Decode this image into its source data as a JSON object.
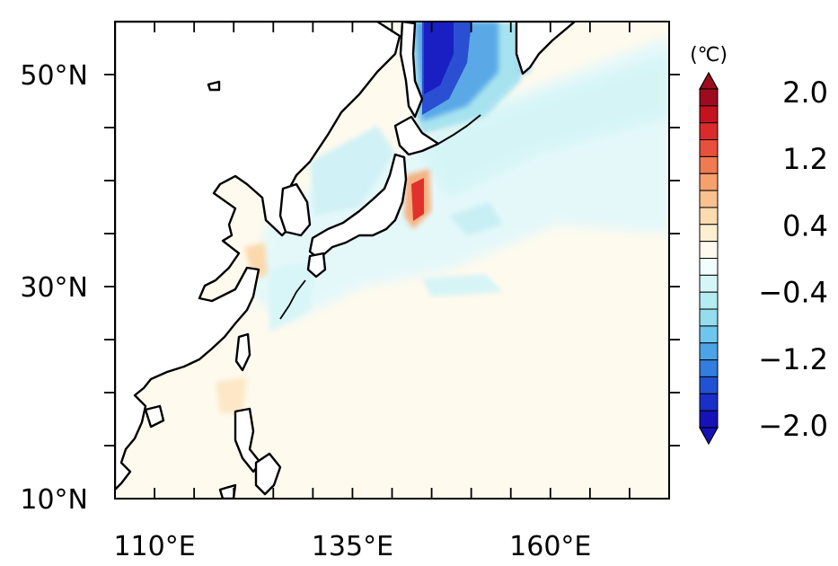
{
  "map": {
    "lon_range": [
      105,
      175
    ],
    "lat_range": [
      10,
      55
    ],
    "lon_labels": [
      {
        "text": "110°E",
        "lon": 110
      },
      {
        "text": "135°E",
        "lon": 135
      },
      {
        "text": "160°E",
        "lon": 160
      }
    ],
    "lat_labels": [
      {
        "text": "50°N",
        "lat": 50
      },
      {
        "text": "30°N",
        "lat": 30
      },
      {
        "text": "10°N",
        "lat": 10
      }
    ],
    "land_color": "#ffffff",
    "coastline_color": "#000000"
  },
  "colorbar": {
    "unit": "(℃)",
    "labels": [
      "2.0",
      "1.2",
      "0.4",
      "−0.4",
      "−1.2",
      "−2.0"
    ],
    "colors": [
      "#9e0b1e",
      "#c4121f",
      "#db2a2a",
      "#e8503c",
      "#f07b52",
      "#f6a06e",
      "#f9c290",
      "#fbdbb0",
      "#fdf0d2",
      "#fefaf0",
      "#f2fdfd",
      "#d4f6f7",
      "#b5ecf2",
      "#94dcee",
      "#6fc6ec",
      "#4ca4e6",
      "#327ddd",
      "#2152d3",
      "#1a2fc8",
      "#1612b8"
    ]
  }
}
